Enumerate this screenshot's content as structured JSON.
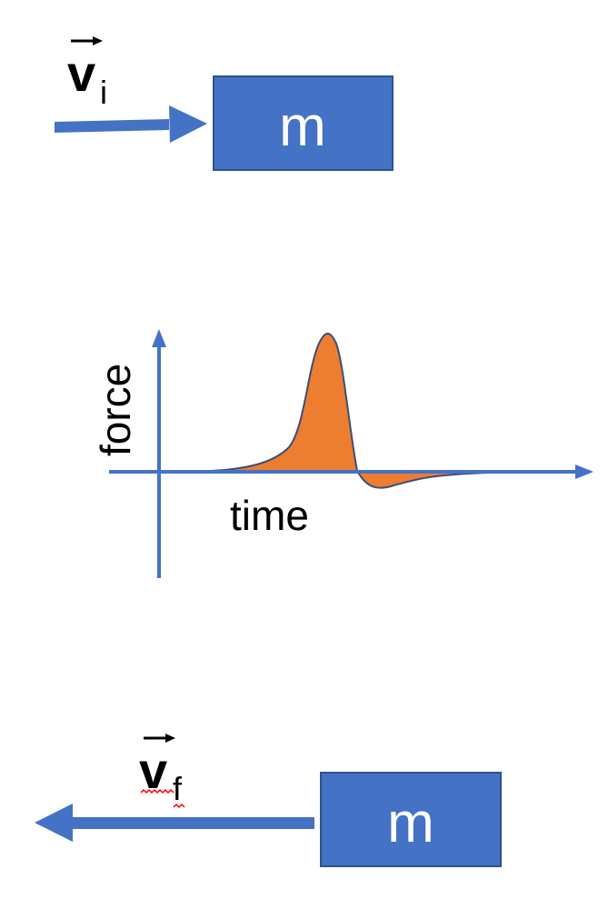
{
  "top": {
    "velocity_symbol": "v",
    "velocity_subscript": "i",
    "mass_label": "m"
  },
  "graph": {
    "y_axis_label": "force",
    "x_axis_label": "time"
  },
  "bottom": {
    "velocity_symbol": "v",
    "velocity_subscript": "f",
    "mass_label": "m"
  },
  "colors": {
    "block_fill": "#4472C4",
    "block_stroke": "#2F528F",
    "arrow": "#4472C4",
    "curve_fill": "#ED7D31",
    "curve_stroke": "#3B4E7A",
    "text": "#000000",
    "spellcheck": "#FF0000"
  }
}
